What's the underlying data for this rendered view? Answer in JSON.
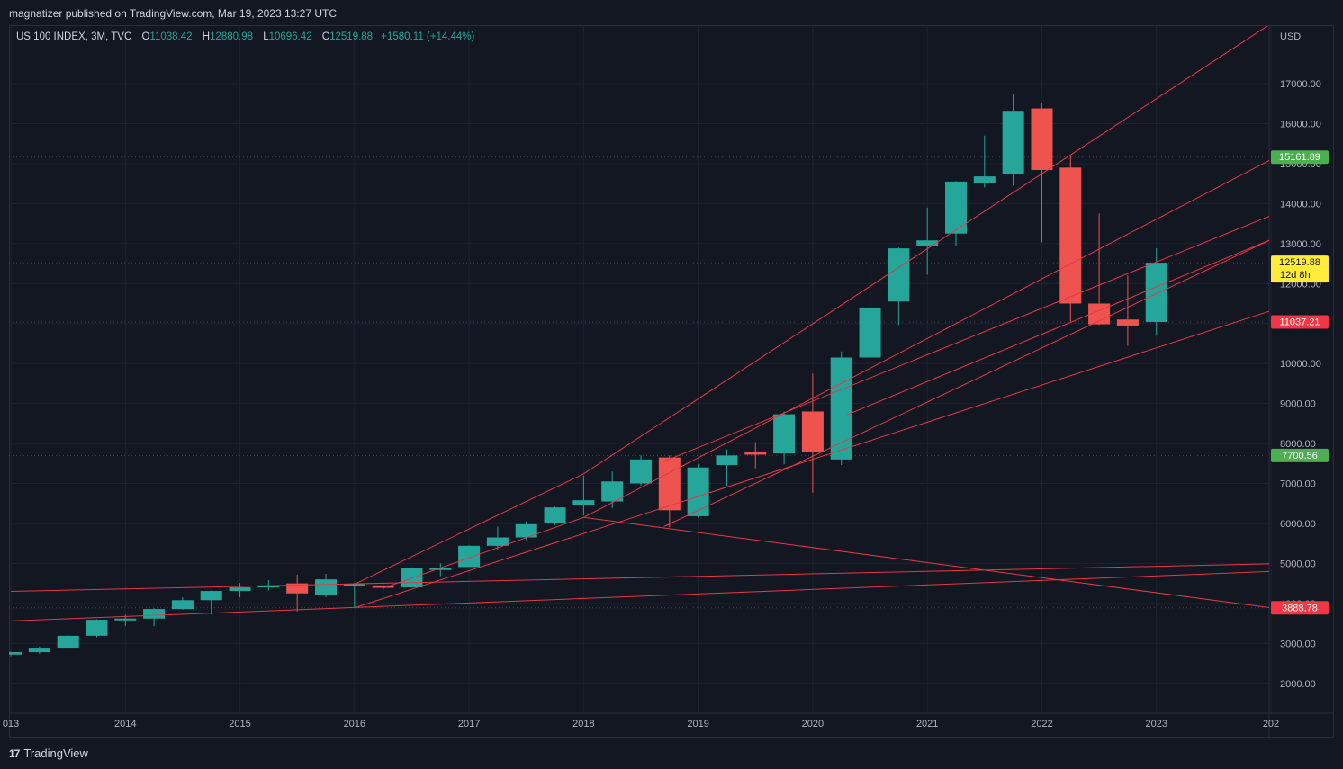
{
  "header": {
    "published_text": "magnatizer published on TradingView.com, Mar 19, 2023 13:27 UTC"
  },
  "legend": {
    "symbol": "US 100 INDEX, 3M, TVC",
    "o_label": "O",
    "o_value": "11038.42",
    "h_label": "H",
    "h_value": "12880.98",
    "l_label": "L",
    "l_value": "10696.42",
    "c_label": "C",
    "c_value": "12519.88",
    "change": "+1580.11 (+14.44%)"
  },
  "footer": {
    "brand": "TradingView",
    "logo": "17"
  },
  "colors": {
    "up": "#26a69a",
    "down": "#ef5350",
    "trendline": "#e53946",
    "grid": "#1f2330",
    "background": "#131722"
  },
  "chart_data": {
    "type": "candlestick",
    "currency": "USD",
    "ylim": [
      1600,
      18300
    ],
    "xlim": [
      2013.0,
      2024.0
    ],
    "y_ticks": [
      "2000.00",
      "3000.00",
      "4000.00",
      "5000.00",
      "6000.00",
      "7000.00",
      "8000.00",
      "9000.00",
      "10000.00",
      "11000.00",
      "12000.00",
      "13000.00",
      "14000.00",
      "15000.00",
      "16000.00",
      "17000.00"
    ],
    "x_ticks": [
      "013",
      "2014",
      "2015",
      "2016",
      "2017",
      "2018",
      "2019",
      "2020",
      "2021",
      "2022",
      "2023",
      "202"
    ],
    "candles": [
      {
        "t": 2013.0,
        "o": 2720,
        "h": 2800,
        "l": 2680,
        "c": 2780
      },
      {
        "t": 2013.25,
        "o": 2780,
        "h": 2920,
        "l": 2740,
        "c": 2870
      },
      {
        "t": 2013.5,
        "o": 2870,
        "h": 3220,
        "l": 2860,
        "c": 3190
      },
      {
        "t": 2013.75,
        "o": 3190,
        "h": 3600,
        "l": 3150,
        "c": 3590
      },
      {
        "t": 2014.0,
        "o": 3590,
        "h": 3720,
        "l": 3440,
        "c": 3620
      },
      {
        "t": 2014.25,
        "o": 3620,
        "h": 3880,
        "l": 3430,
        "c": 3860
      },
      {
        "t": 2014.5,
        "o": 3860,
        "h": 4150,
        "l": 3840,
        "c": 4080
      },
      {
        "t": 2014.75,
        "o": 4080,
        "h": 4320,
        "l": 3720,
        "c": 4310
      },
      {
        "t": 2015.0,
        "o": 4310,
        "h": 4510,
        "l": 4150,
        "c": 4400
      },
      {
        "t": 2015.25,
        "o": 4400,
        "h": 4580,
        "l": 4320,
        "c": 4450
      },
      {
        "t": 2015.5,
        "o": 4500,
        "h": 4720,
        "l": 3800,
        "c": 4250
      },
      {
        "t": 2015.75,
        "o": 4200,
        "h": 4740,
        "l": 4150,
        "c": 4600
      },
      {
        "t": 2016.0,
        "o": 4480,
        "h": 4510,
        "l": 3890,
        "c": 4480
      },
      {
        "t": 2016.25,
        "o": 4450,
        "h": 4530,
        "l": 4300,
        "c": 4390
      },
      {
        "t": 2016.5,
        "o": 4400,
        "h": 4900,
        "l": 4400,
        "c": 4880
      },
      {
        "t": 2016.75,
        "o": 4880,
        "h": 5000,
        "l": 4680,
        "c": 4880
      },
      {
        "t": 2017.0,
        "o": 4910,
        "h": 5450,
        "l": 4910,
        "c": 5440
      },
      {
        "t": 2017.25,
        "o": 5440,
        "h": 5920,
        "l": 5350,
        "c": 5650
      },
      {
        "t": 2017.5,
        "o": 5650,
        "h": 6050,
        "l": 5580,
        "c": 5980
      },
      {
        "t": 2017.75,
        "o": 6000,
        "h": 6420,
        "l": 5960,
        "c": 6400
      },
      {
        "t": 2018.0,
        "o": 6450,
        "h": 7190,
        "l": 6200,
        "c": 6580
      },
      {
        "t": 2018.25,
        "o": 6550,
        "h": 7300,
        "l": 6380,
        "c": 7050
      },
      {
        "t": 2018.5,
        "o": 7000,
        "h": 7700,
        "l": 6950,
        "c": 7600
      },
      {
        "t": 2018.75,
        "o": 7650,
        "h": 7700,
        "l": 5900,
        "c": 6330
      },
      {
        "t": 2019.0,
        "o": 6180,
        "h": 7490,
        "l": 6150,
        "c": 7400
      },
      {
        "t": 2019.25,
        "o": 7460,
        "h": 7850,
        "l": 6940,
        "c": 7700
      },
      {
        "t": 2019.5,
        "o": 7800,
        "h": 8030,
        "l": 7380,
        "c": 7720
      },
      {
        "t": 2019.75,
        "o": 7750,
        "h": 8800,
        "l": 7480,
        "c": 8730
      },
      {
        "t": 2020.0,
        "o": 8800,
        "h": 9750,
        "l": 6770,
        "c": 7800
      },
      {
        "t": 2020.25,
        "o": 7600,
        "h": 10300,
        "l": 7460,
        "c": 10150
      },
      {
        "t": 2020.5,
        "o": 10150,
        "h": 12420,
        "l": 10130,
        "c": 11400
      },
      {
        "t": 2020.75,
        "o": 11550,
        "h": 12900,
        "l": 10960,
        "c": 12880
      },
      {
        "t": 2021.0,
        "o": 12930,
        "h": 13900,
        "l": 12220,
        "c": 13080
      },
      {
        "t": 2021.25,
        "o": 13250,
        "h": 14560,
        "l": 12950,
        "c": 14550
      },
      {
        "t": 2021.5,
        "o": 14520,
        "h": 15700,
        "l": 14400,
        "c": 14680
      },
      {
        "t": 2021.75,
        "o": 14730,
        "h": 16750,
        "l": 14450,
        "c": 16320
      },
      {
        "t": 2022.0,
        "o": 16380,
        "h": 16500,
        "l": 13030,
        "c": 14840
      },
      {
        "t": 2022.25,
        "o": 14900,
        "h": 15200,
        "l": 11050,
        "c": 11500
      },
      {
        "t": 2022.5,
        "o": 11500,
        "h": 13750,
        "l": 10960,
        "c": 10980
      },
      {
        "t": 2022.75,
        "o": 11100,
        "h": 12200,
        "l": 10440,
        "c": 10950
      },
      {
        "t": 2023.0,
        "o": 11038.42,
        "h": 12880.98,
        "l": 10696.42,
        "c": 12519.88
      }
    ],
    "price_labels": [
      {
        "value": 15161.89,
        "text": "15161.89",
        "color": "#4caf50"
      },
      {
        "value": 12519.88,
        "text": "12519.88",
        "subtext": "12d 8h",
        "color": "#ffeb3b"
      },
      {
        "value": 11037.21,
        "text": "11037.21",
        "color": "#f23645"
      },
      {
        "value": 7700.56,
        "text": "7700.56",
        "color": "#4caf50"
      },
      {
        "value": 3888.78,
        "text": "3888.78",
        "color": "#f23645"
      }
    ],
    "trendlines": [
      {
        "x1": 2013.0,
        "y1": 4300,
        "x2": 2024.0,
        "y2": 4990
      },
      {
        "x1": 2013.0,
        "y1": 3560,
        "x2": 2024.0,
        "y2": 4800
      },
      {
        "x1": 2016.0,
        "y1": 3890,
        "x2": 2024.0,
        "y2": 11320
      },
      {
        "x1": 2016.0,
        "y1": 4480,
        "x2": 2018.0,
        "y2": 7240
      },
      {
        "x1": 2018.0,
        "y1": 7240,
        "x2": 2024.0,
        "y2": 18500
      },
      {
        "x1": 2016.25,
        "y1": 4380,
        "x2": 2018.0,
        "y2": 6150
      },
      {
        "x1": 2018.0,
        "y1": 6150,
        "x2": 2024.0,
        "y2": 3890
      },
      {
        "x1": 2018.0,
        "y1": 6150,
        "x2": 2024.0,
        "y2": 15100
      },
      {
        "x1": 2018.7,
        "y1": 5920,
        "x2": 2024.0,
        "y2": 13100
      },
      {
        "x1": 2018.7,
        "y1": 7550,
        "x2": 2024.0,
        "y2": 13700
      },
      {
        "x1": 2020.3,
        "y1": 8720,
        "x2": 2024.0,
        "y2": 13100
      }
    ],
    "dotted_levels": [
      15161.89,
      12519.88,
      11037.21,
      7700.56,
      3888.78
    ]
  }
}
